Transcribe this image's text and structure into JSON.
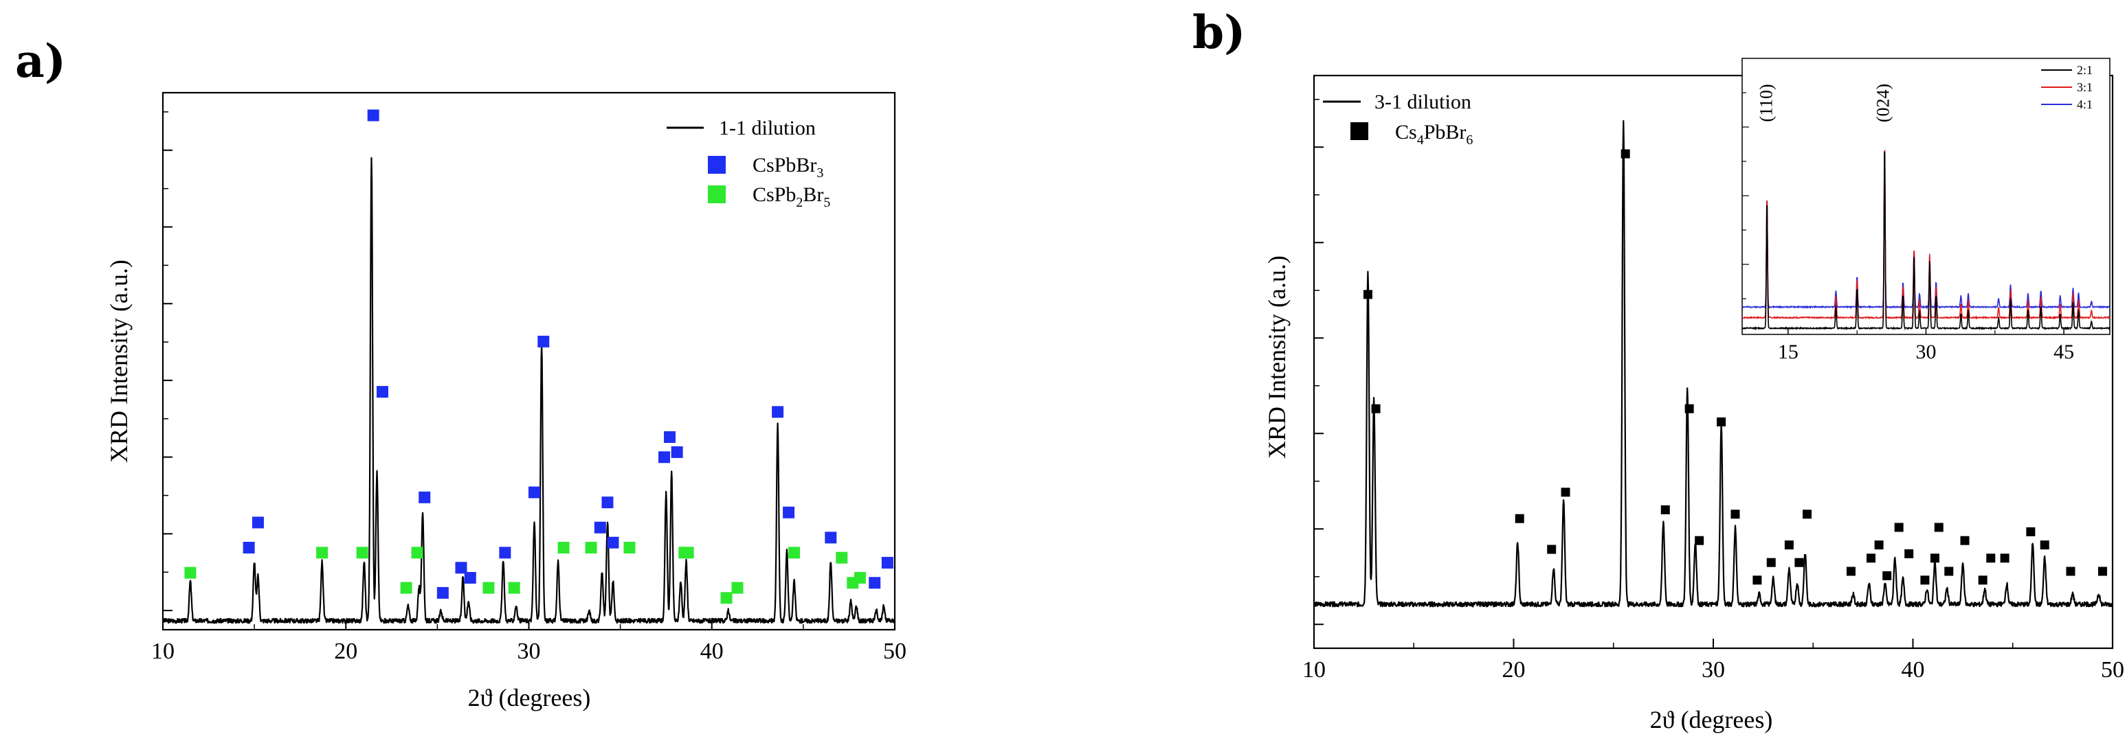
{
  "chart_data": [
    {
      "id": "a",
      "panel_label": "a)",
      "type": "line",
      "xlabel": "2ϑ (degrees)",
      "ylabel": "XRD Intensity (a.u.)",
      "xlim": [
        10,
        50
      ],
      "ylim": [
        0,
        100
      ],
      "xticks": [
        "10",
        "20",
        "30",
        "40",
        "50"
      ],
      "series": [
        {
          "name": "1-1 dilution",
          "color": "#000000",
          "peaks": [
            {
              "x": 11.5,
              "h": 8
            },
            {
              "x": 15.0,
              "h": 12
            },
            {
              "x": 15.2,
              "h": 9
            },
            {
              "x": 18.7,
              "h": 12
            },
            {
              "x": 21.0,
              "h": 12
            },
            {
              "x": 21.4,
              "h": 94
            },
            {
              "x": 21.7,
              "h": 30
            },
            {
              "x": 23.4,
              "h": 3
            },
            {
              "x": 24.0,
              "h": 7
            },
            {
              "x": 24.2,
              "h": 22
            },
            {
              "x": 25.2,
              "h": 2
            },
            {
              "x": 26.4,
              "h": 9
            },
            {
              "x": 26.7,
              "h": 4
            },
            {
              "x": 28.6,
              "h": 12
            },
            {
              "x": 29.3,
              "h": 3
            },
            {
              "x": 30.3,
              "h": 20
            },
            {
              "x": 30.7,
              "h": 56
            },
            {
              "x": 31.6,
              "h": 12
            },
            {
              "x": 33.3,
              "h": 2
            },
            {
              "x": 34.0,
              "h": 10
            },
            {
              "x": 34.3,
              "h": 20
            },
            {
              "x": 34.6,
              "h": 8
            },
            {
              "x": 37.5,
              "h": 26
            },
            {
              "x": 37.8,
              "h": 30
            },
            {
              "x": 38.3,
              "h": 8
            },
            {
              "x": 38.6,
              "h": 12
            },
            {
              "x": 40.9,
              "h": 2
            },
            {
              "x": 43.6,
              "h": 40
            },
            {
              "x": 44.1,
              "h": 14
            },
            {
              "x": 44.5,
              "h": 8
            },
            {
              "x": 46.5,
              "h": 12
            },
            {
              "x": 47.6,
              "h": 4
            },
            {
              "x": 47.9,
              "h": 3
            },
            {
              "x": 49.0,
              "h": 2
            },
            {
              "x": 49.4,
              "h": 3
            }
          ]
        }
      ],
      "markers": [
        {
          "name": "CsPbBr3",
          "legend_main": "CsPbBr",
          "legend_sub": "3",
          "color": "#1f2ff2",
          "points": [
            {
              "x": 14.7,
              "y": 14
            },
            {
              "x": 15.2,
              "y": 19
            },
            {
              "x": 21.5,
              "y": 100
            },
            {
              "x": 22.0,
              "y": 45
            },
            {
              "x": 24.3,
              "y": 24
            },
            {
              "x": 25.3,
              "y": 5
            },
            {
              "x": 26.3,
              "y": 10
            },
            {
              "x": 26.8,
              "y": 8
            },
            {
              "x": 28.7,
              "y": 13
            },
            {
              "x": 30.3,
              "y": 25
            },
            {
              "x": 30.8,
              "y": 55
            },
            {
              "x": 33.9,
              "y": 18
            },
            {
              "x": 34.3,
              "y": 23
            },
            {
              "x": 34.6,
              "y": 15
            },
            {
              "x": 37.4,
              "y": 32
            },
            {
              "x": 37.7,
              "y": 36
            },
            {
              "x": 38.1,
              "y": 33
            },
            {
              "x": 43.6,
              "y": 41
            },
            {
              "x": 44.2,
              "y": 21
            },
            {
              "x": 46.5,
              "y": 16
            },
            {
              "x": 48.9,
              "y": 7
            },
            {
              "x": 49.6,
              "y": 11
            }
          ]
        },
        {
          "name": "CsPb2Br5",
          "legend_main": "CsPb",
          "legend_mid": "2",
          "legend_main2": "Br",
          "legend_sub": "5",
          "color": "#2ee830",
          "points": [
            {
              "x": 11.5,
              "y": 9
            },
            {
              "x": 18.7,
              "y": 13
            },
            {
              "x": 20.9,
              "y": 13
            },
            {
              "x": 23.3,
              "y": 6
            },
            {
              "x": 23.9,
              "y": 13
            },
            {
              "x": 27.8,
              "y": 6
            },
            {
              "x": 29.2,
              "y": 6
            },
            {
              "x": 31.9,
              "y": 14
            },
            {
              "x": 33.4,
              "y": 14
            },
            {
              "x": 35.5,
              "y": 14
            },
            {
              "x": 38.5,
              "y": 13
            },
            {
              "x": 38.7,
              "y": 13
            },
            {
              "x": 40.8,
              "y": 4
            },
            {
              "x": 41.4,
              "y": 6
            },
            {
              "x": 44.5,
              "y": 13
            },
            {
              "x": 47.1,
              "y": 12
            },
            {
              "x": 47.7,
              "y": 7
            },
            {
              "x": 48.1,
              "y": 8
            }
          ]
        }
      ],
      "legend": {
        "position": "top-right"
      }
    },
    {
      "id": "b",
      "panel_label": "b)",
      "type": "line",
      "xlabel": "2ϑ (degrees)",
      "ylabel": "XRD Intensity (a.u.)",
      "xlim": [
        10,
        50
      ],
      "ylim": [
        0,
        100
      ],
      "xticks": [
        "10",
        "20",
        "30",
        "40",
        "50"
      ],
      "series": [
        {
          "name": "3-1 dilution",
          "color": "#000000",
          "peaks": [
            {
              "x": 12.7,
              "h": 65
            },
            {
              "x": 13.0,
              "h": 40
            },
            {
              "x": 20.2,
              "h": 12
            },
            {
              "x": 22.0,
              "h": 7
            },
            {
              "x": 22.5,
              "h": 20
            },
            {
              "x": 25.5,
              "h": 94
            },
            {
              "x": 27.5,
              "h": 16
            },
            {
              "x": 28.7,
              "h": 42
            },
            {
              "x": 29.1,
              "h": 12
            },
            {
              "x": 30.4,
              "h": 35
            },
            {
              "x": 31.1,
              "h": 15
            },
            {
              "x": 32.3,
              "h": 2
            },
            {
              "x": 33.0,
              "h": 5
            },
            {
              "x": 33.8,
              "h": 7
            },
            {
              "x": 34.2,
              "h": 4
            },
            {
              "x": 34.6,
              "h": 10
            },
            {
              "x": 37.0,
              "h": 2
            },
            {
              "x": 37.8,
              "h": 4
            },
            {
              "x": 38.6,
              "h": 4
            },
            {
              "x": 39.1,
              "h": 9
            },
            {
              "x": 39.5,
              "h": 5
            },
            {
              "x": 40.7,
              "h": 3
            },
            {
              "x": 41.1,
              "h": 8
            },
            {
              "x": 41.7,
              "h": 3
            },
            {
              "x": 42.5,
              "h": 8
            },
            {
              "x": 43.6,
              "h": 3
            },
            {
              "x": 44.7,
              "h": 4
            },
            {
              "x": 46.0,
              "h": 12
            },
            {
              "x": 46.6,
              "h": 9
            },
            {
              "x": 48.0,
              "h": 2
            },
            {
              "x": 49.3,
              "h": 2
            }
          ]
        }
      ],
      "markers": [
        {
          "name": "Cs4PbBr6",
          "legend_main": "Cs",
          "legend_mid": "4",
          "legend_main2": "PbBr",
          "legend_sub": "6",
          "color": "#000000",
          "points": [
            {
              "x": 12.7,
              "y": 68
            },
            {
              "x": 13.1,
              "y": 42
            },
            {
              "x": 20.3,
              "y": 17
            },
            {
              "x": 21.9,
              "y": 10
            },
            {
              "x": 22.6,
              "y": 23
            },
            {
              "x": 25.6,
              "y": 100
            },
            {
              "x": 27.6,
              "y": 19
            },
            {
              "x": 28.8,
              "y": 42
            },
            {
              "x": 29.3,
              "y": 12
            },
            {
              "x": 30.4,
              "y": 39
            },
            {
              "x": 31.1,
              "y": 18
            },
            {
              "x": 32.2,
              "y": 3
            },
            {
              "x": 32.9,
              "y": 7
            },
            {
              "x": 33.8,
              "y": 11
            },
            {
              "x": 34.3,
              "y": 7
            },
            {
              "x": 34.7,
              "y": 18
            },
            {
              "x": 36.9,
              "y": 5
            },
            {
              "x": 37.9,
              "y": 8
            },
            {
              "x": 38.3,
              "y": 11
            },
            {
              "x": 38.7,
              "y": 4
            },
            {
              "x": 39.3,
              "y": 15
            },
            {
              "x": 39.8,
              "y": 9
            },
            {
              "x": 40.6,
              "y": 3
            },
            {
              "x": 41.1,
              "y": 8
            },
            {
              "x": 41.3,
              "y": 15
            },
            {
              "x": 41.8,
              "y": 5
            },
            {
              "x": 42.6,
              "y": 12
            },
            {
              "x": 43.5,
              "y": 3
            },
            {
              "x": 43.9,
              "y": 8
            },
            {
              "x": 44.6,
              "y": 8
            },
            {
              "x": 45.9,
              "y": 14
            },
            {
              "x": 46.6,
              "y": 11
            },
            {
              "x": 47.9,
              "y": 5
            },
            {
              "x": 49.5,
              "y": 5
            }
          ]
        }
      ],
      "legend": {
        "position": "top-left"
      },
      "inset": {
        "xlim": [
          10,
          50
        ],
        "xticks": [
          "15",
          "30",
          "45"
        ],
        "peak_labels": [
          {
            "text": "(110)",
            "x": 12.8
          },
          {
            "text": "(024)",
            "x": 25.5
          }
        ],
        "series": [
          {
            "name": "2:1",
            "color": "#000000",
            "offset": 0,
            "scale": 1.0
          },
          {
            "name": "3:1",
            "color": "#e01b1b",
            "offset": 10,
            "scale": 0.95
          },
          {
            "name": "4:1",
            "color": "#2b2bd8",
            "offset": 20,
            "scale": 0.75
          }
        ],
        "peaks": [
          {
            "x": 12.7,
            "h": 70
          },
          {
            "x": 20.2,
            "h": 12
          },
          {
            "x": 22.5,
            "h": 22
          },
          {
            "x": 25.5,
            "h": 100
          },
          {
            "x": 27.5,
            "h": 18
          },
          {
            "x": 28.7,
            "h": 40
          },
          {
            "x": 29.3,
            "h": 10
          },
          {
            "x": 30.4,
            "h": 36
          },
          {
            "x": 31.1,
            "h": 18
          },
          {
            "x": 33.8,
            "h": 8
          },
          {
            "x": 34.6,
            "h": 10
          },
          {
            "x": 37.9,
            "h": 6
          },
          {
            "x": 39.2,
            "h": 16
          },
          {
            "x": 41.1,
            "h": 10
          },
          {
            "x": 42.5,
            "h": 12
          },
          {
            "x": 44.6,
            "h": 8
          },
          {
            "x": 46.0,
            "h": 14
          },
          {
            "x": 46.6,
            "h": 10
          },
          {
            "x": 48.0,
            "h": 4
          }
        ]
      }
    }
  ]
}
